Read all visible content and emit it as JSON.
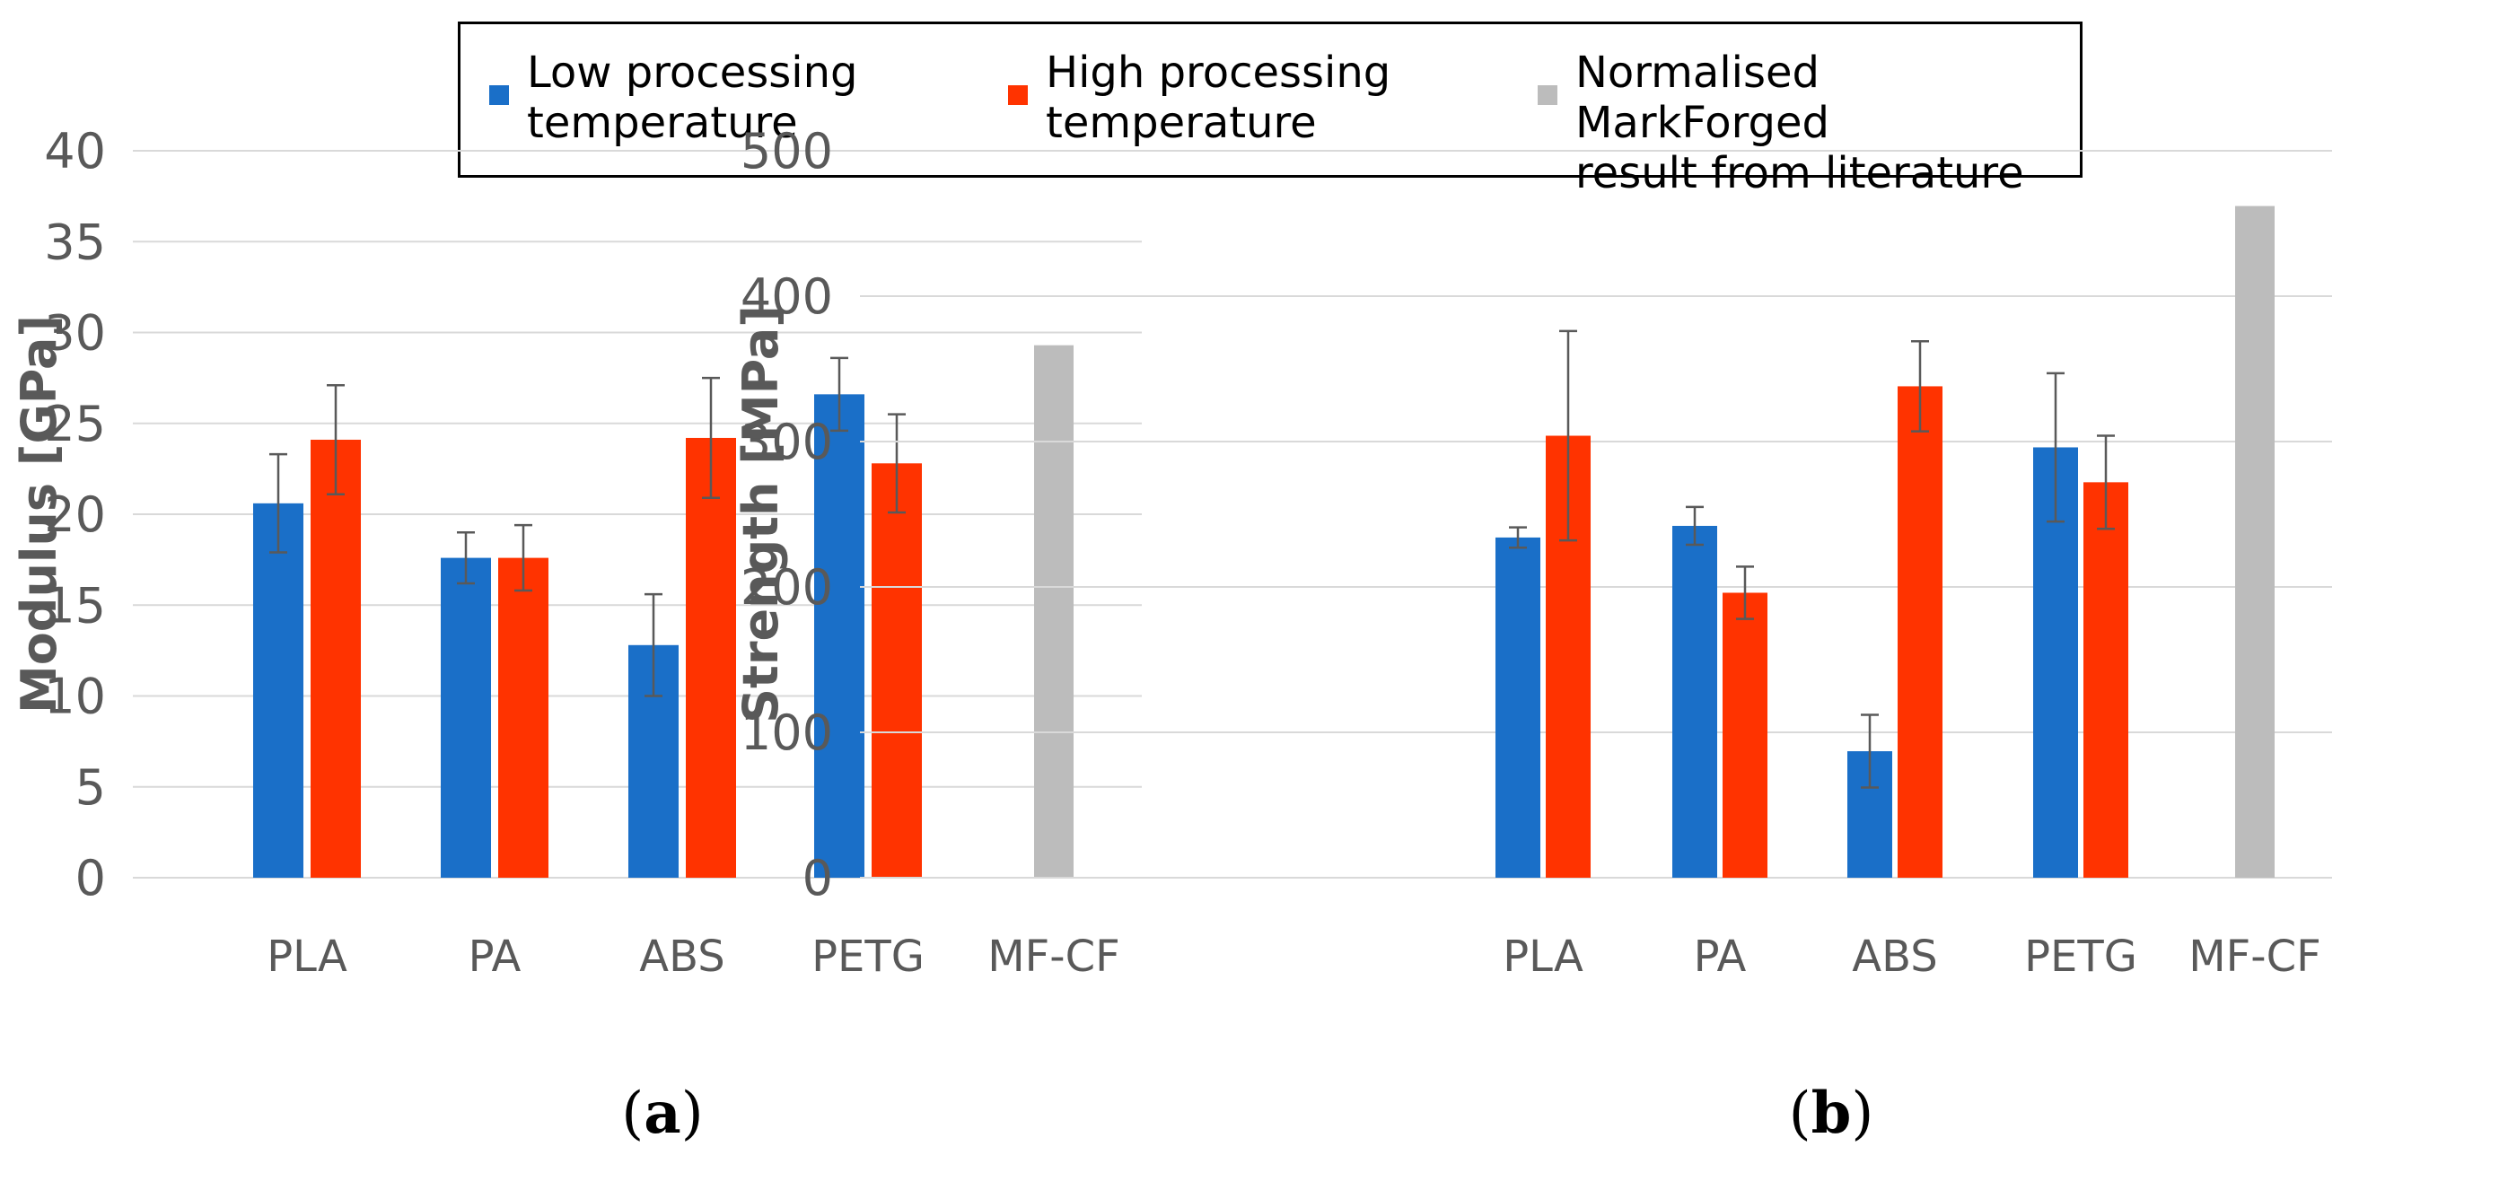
{
  "legend": [
    {
      "label": "Low processing\ntemperature",
      "color": "#1a6fc8"
    },
    {
      "label": "High processing\ntemperature",
      "color": "#ff3300"
    },
    {
      "label": "Normalised MarkForged\nresult from literature",
      "color": "#bcbcbc"
    }
  ],
  "colors": {
    "low": "#1a6fc8",
    "high": "#ff3300",
    "literature": "#bcbcbc",
    "grid": "#d9d9d9",
    "error": "#595959"
  },
  "chart_data": [
    {
      "type": "bar",
      "panel_label": "a",
      "ylabel": "Modulus [GPa]",
      "xlabel": "",
      "ylim": [
        0,
        40
      ],
      "yticks": [
        0,
        5,
        10,
        15,
        20,
        25,
        30,
        35,
        40
      ],
      "categories": [
        "PLA",
        "PA",
        "ABS",
        "PETG",
        "MF-CF"
      ],
      "series": [
        {
          "name": "Low processing temperature",
          "values": [
            20.6,
            17.6,
            12.8,
            26.6,
            null
          ],
          "errors": [
            2.7,
            1.4,
            2.8,
            2.0,
            null
          ]
        },
        {
          "name": "High processing temperature",
          "values": [
            24.1,
            17.6,
            24.2,
            22.8,
            null
          ],
          "errors": [
            3.0,
            1.8,
            3.3,
            2.7,
            null
          ]
        },
        {
          "name": "Normalised MarkForged result from literature",
          "values": [
            null,
            null,
            null,
            null,
            29.3
          ],
          "errors": [
            null,
            null,
            null,
            null,
            null
          ]
        }
      ]
    },
    {
      "type": "bar",
      "panel_label": "b",
      "ylabel": "Strength [MPa]",
      "xlabel": "",
      "ylim": [
        0,
        500
      ],
      "yticks": [
        0,
        100,
        200,
        300,
        400,
        500
      ],
      "categories": [
        "PLA",
        "PA",
        "ABS",
        "PETG",
        "MF-CF"
      ],
      "series": [
        {
          "name": "Low processing temperature",
          "values": [
            234,
            242,
            87,
            296,
            null
          ],
          "errors": [
            7,
            13,
            25,
            51,
            null
          ]
        },
        {
          "name": "High processing temperature",
          "values": [
            304,
            196,
            338,
            272,
            null
          ],
          "errors": [
            72,
            18,
            31,
            32,
            null
          ]
        },
        {
          "name": "Normalised MarkForged result from literature",
          "values": [
            null,
            null,
            null,
            null,
            462
          ],
          "errors": [
            null,
            null,
            null,
            null,
            null
          ]
        }
      ]
    }
  ]
}
